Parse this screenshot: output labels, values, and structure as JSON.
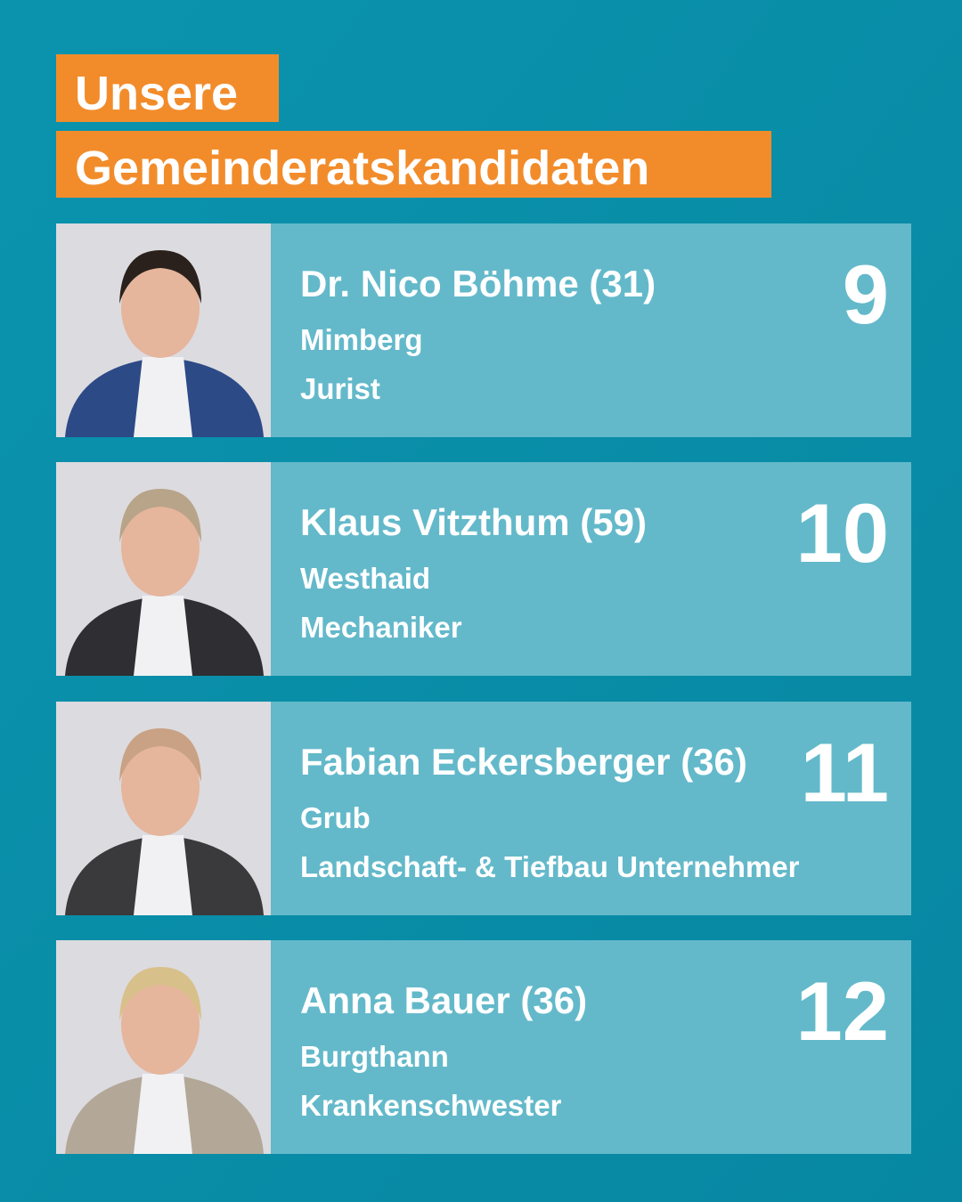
{
  "header": {
    "title_lines": [
      "Unsere",
      "Gemeinderatskandidaten"
    ]
  },
  "candidates": [
    {
      "name": "Dr. Nico Böhme (31)",
      "place": "Mimberg",
      "job": "Jurist",
      "number": 9
    },
    {
      "name": "Klaus Vitzthum (59)",
      "place": "Westhaid",
      "job": "Mechaniker",
      "number": 10
    },
    {
      "name": "Fabian Eckersberger (36)",
      "place": "Grub",
      "job": "Landschaft- & Tiefbau Unternehmer",
      "number": 11
    },
    {
      "name": "Anna Bauer (36)",
      "place": "Burgthann",
      "job": "Krankenschwester",
      "number": 12
    }
  ]
}
